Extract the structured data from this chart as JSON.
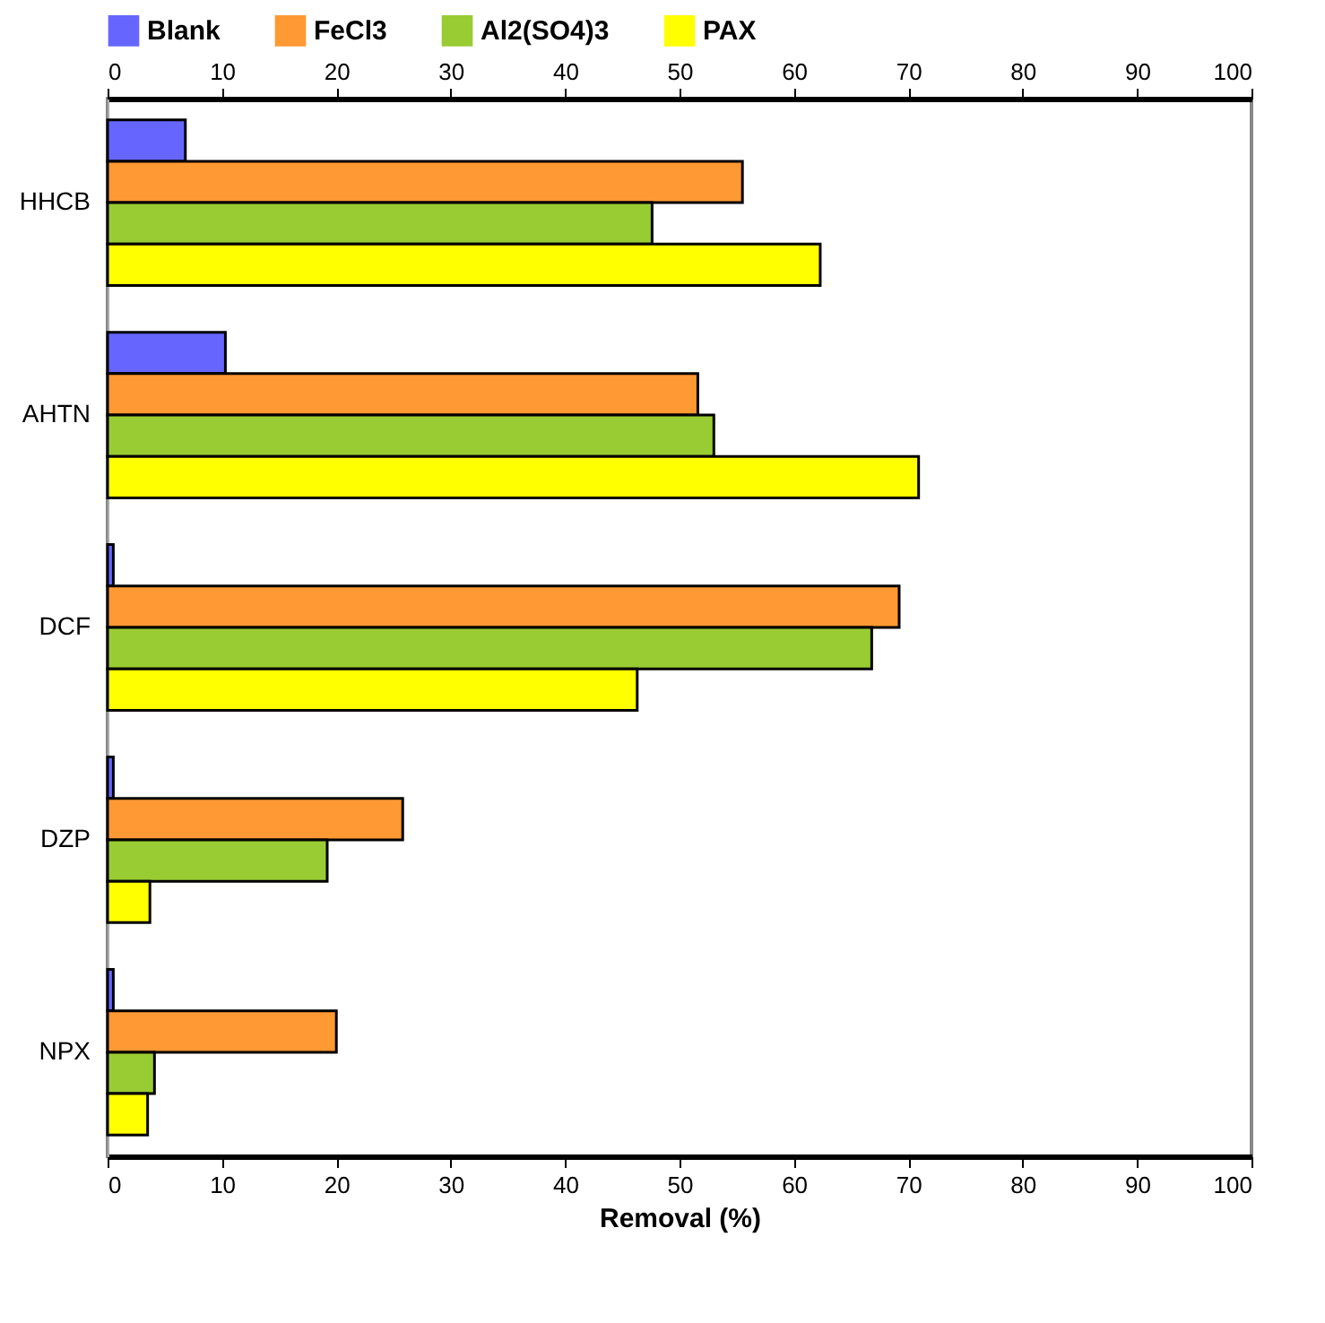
{
  "chart_data": {
    "type": "bar",
    "orientation": "horizontal",
    "xlabel": "Removal (%)",
    "categories": [
      "HHCB",
      "AHTN",
      "DCF",
      "DZP",
      "NPX"
    ],
    "series": [
      {
        "name": "Blank",
        "color": "#6666ff",
        "values": [
          6.8,
          10.3,
          0.5,
          0.5,
          0.5
        ]
      },
      {
        "name": "FeCl3",
        "color": "#ff9933",
        "values": [
          55.5,
          51.6,
          69.2,
          25.8,
          20.0
        ]
      },
      {
        "name": "Al2(SO4)3",
        "color": "#99cc33",
        "values": [
          47.6,
          53.0,
          66.8,
          19.2,
          4.1
        ]
      },
      {
        "name": "PAX",
        "color": "#ffff00",
        "values": [
          62.3,
          70.9,
          46.3,
          3.7,
          3.5
        ]
      }
    ],
    "xlim": [
      0,
      100
    ],
    "xticks": [
      0,
      10,
      20,
      30,
      40,
      50,
      60,
      70,
      80,
      90,
      100
    ],
    "x2lim": [
      0,
      100
    ],
    "x2ticks": [
      0,
      10,
      20,
      30,
      40,
      50,
      60,
      70,
      80,
      90,
      100
    ],
    "grid": false,
    "legend": "top"
  }
}
